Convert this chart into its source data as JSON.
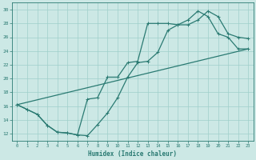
{
  "title": "",
  "xlabel": "Humidex (Indice chaleur)",
  "ylabel": "",
  "xlim": [
    -0.5,
    23.5
  ],
  "ylim": [
    11.0,
    31.0
  ],
  "xticks": [
    0,
    1,
    2,
    3,
    4,
    5,
    6,
    7,
    8,
    9,
    10,
    11,
    12,
    13,
    14,
    15,
    16,
    17,
    18,
    19,
    20,
    21,
    22,
    23
  ],
  "yticks": [
    12,
    14,
    16,
    18,
    20,
    22,
    24,
    26,
    28,
    30
  ],
  "bg_color": "#cce8e5",
  "grid_color": "#9fcfca",
  "line_color": "#2a7a72",
  "line1_x": [
    0,
    1,
    2,
    3,
    4,
    5,
    6,
    7,
    8,
    9,
    10,
    11,
    12,
    13,
    14,
    15,
    16,
    17,
    18,
    19,
    20,
    21,
    22,
    23
  ],
  "line1_y": [
    16.2,
    15.5,
    14.8,
    13.2,
    12.2,
    12.1,
    11.8,
    11.7,
    13.3,
    15.0,
    17.2,
    20.2,
    22.3,
    22.5,
    23.8,
    27.0,
    27.8,
    27.8,
    28.5,
    29.8,
    29.0,
    26.5,
    26.0,
    25.8
  ],
  "line2_x": [
    0,
    1,
    2,
    3,
    4,
    5,
    6,
    7,
    8,
    9,
    10,
    11,
    12,
    13,
    14,
    15,
    16,
    17,
    18,
    19,
    20,
    21,
    22,
    23
  ],
  "line2_y": [
    16.2,
    15.5,
    14.8,
    13.2,
    12.2,
    12.1,
    11.8,
    17.0,
    17.2,
    20.2,
    20.2,
    22.3,
    22.5,
    28.0,
    28.0,
    28.0,
    27.8,
    28.5,
    29.8,
    29.0,
    26.5,
    26.0,
    24.3,
    24.3
  ],
  "line3_x": [
    0,
    23
  ],
  "line3_y": [
    16.2,
    24.3
  ],
  "marker_size": 2.5,
  "linewidth": 0.9
}
